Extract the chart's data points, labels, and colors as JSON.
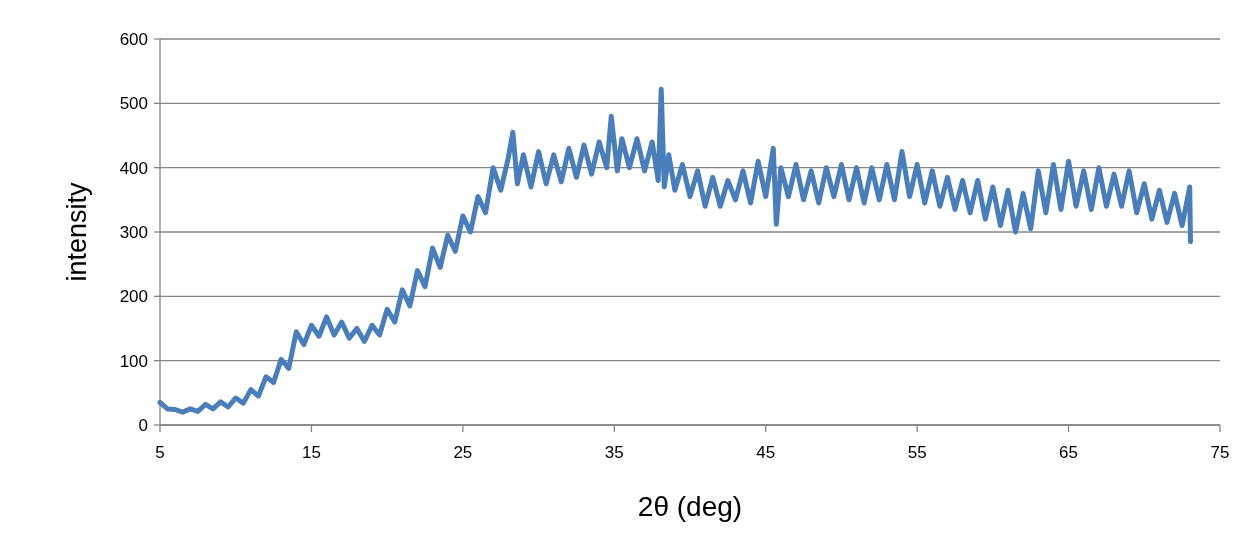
{
  "chart_data": {
    "type": "line",
    "xlabel": "2θ (deg)",
    "ylabel": "intensity",
    "xlim": [
      5,
      75
    ],
    "xticks": [
      5,
      15,
      25,
      35,
      45,
      55,
      65,
      75
    ],
    "ylim": [
      0,
      600
    ],
    "yticks": [
      0,
      100,
      200,
      300,
      400,
      500,
      600
    ],
    "grid": "y",
    "marker": "none",
    "line_style": "solid",
    "series": [
      {
        "color": "#4a7ebb",
        "x": [
          5,
          5.5,
          6,
          6.5,
          7,
          7.5,
          8,
          8.5,
          9,
          9.5,
          10,
          10.5,
          11,
          11.5,
          12,
          12.5,
          13,
          13.5,
          14,
          14.5,
          15,
          15.5,
          16,
          16.5,
          17,
          17.5,
          18,
          18.5,
          19,
          19.5,
          20,
          20.5,
          21,
          21.5,
          22,
          22.5,
          23,
          23.5,
          24,
          24.5,
          25,
          25.5,
          26,
          26.5,
          27,
          27.5,
          28,
          28.3,
          28.6,
          29,
          29.5,
          30,
          30.5,
          31,
          31.5,
          32,
          32.5,
          33,
          33.5,
          34,
          34.5,
          34.8,
          35.2,
          35.5,
          36,
          36.5,
          37,
          37.5,
          37.9,
          38.1,
          38.3,
          38.6,
          39,
          39.5,
          40,
          40.5,
          41,
          41.5,
          42,
          42.5,
          43,
          43.5,
          44,
          44.5,
          45,
          45.5,
          45.7,
          46,
          46.5,
          47,
          47.5,
          48,
          48.5,
          49,
          49.5,
          50,
          50.5,
          51,
          51.5,
          52,
          52.5,
          53,
          53.5,
          54,
          54.5,
          55,
          55.5,
          56,
          56.5,
          57,
          57.5,
          58,
          58.5,
          59,
          59.5,
          60,
          60.5,
          61,
          61.5,
          62,
          62.5,
          63,
          63.5,
          64,
          64.5,
          65,
          65.5,
          66,
          66.5,
          67,
          67.5,
          68,
          68.5,
          69,
          69.5,
          70,
          70.5,
          71,
          71.5,
          72,
          72.5,
          73,
          73.05
        ],
        "values": [
          35,
          25,
          24,
          20,
          25,
          21,
          32,
          25,
          36,
          28,
          42,
          34,
          55,
          45,
          75,
          66,
          102,
          88,
          145,
          125,
          155,
          138,
          168,
          140,
          160,
          135,
          150,
          130,
          155,
          140,
          180,
          160,
          210,
          185,
          240,
          215,
          275,
          245,
          295,
          270,
          325,
          300,
          355,
          330,
          400,
          365,
          415,
          455,
          375,
          420,
          370,
          425,
          375,
          420,
          378,
          430,
          385,
          435,
          390,
          440,
          400,
          480,
          395,
          445,
          400,
          445,
          395,
          440,
          380,
          522,
          370,
          420,
          365,
          405,
          355,
          395,
          340,
          385,
          340,
          380,
          350,
          395,
          345,
          410,
          355,
          430,
          312,
          400,
          355,
          405,
          350,
          395,
          345,
          400,
          355,
          405,
          350,
          400,
          345,
          400,
          350,
          405,
          350,
          425,
          355,
          405,
          345,
          395,
          340,
          385,
          335,
          380,
          330,
          380,
          320,
          370,
          310,
          365,
          300,
          360,
          305,
          395,
          330,
          405,
          335,
          410,
          340,
          395,
          335,
          400,
          340,
          390,
          340,
          395,
          330,
          375,
          320,
          365,
          315,
          360,
          310,
          370,
          285
        ]
      }
    ]
  }
}
